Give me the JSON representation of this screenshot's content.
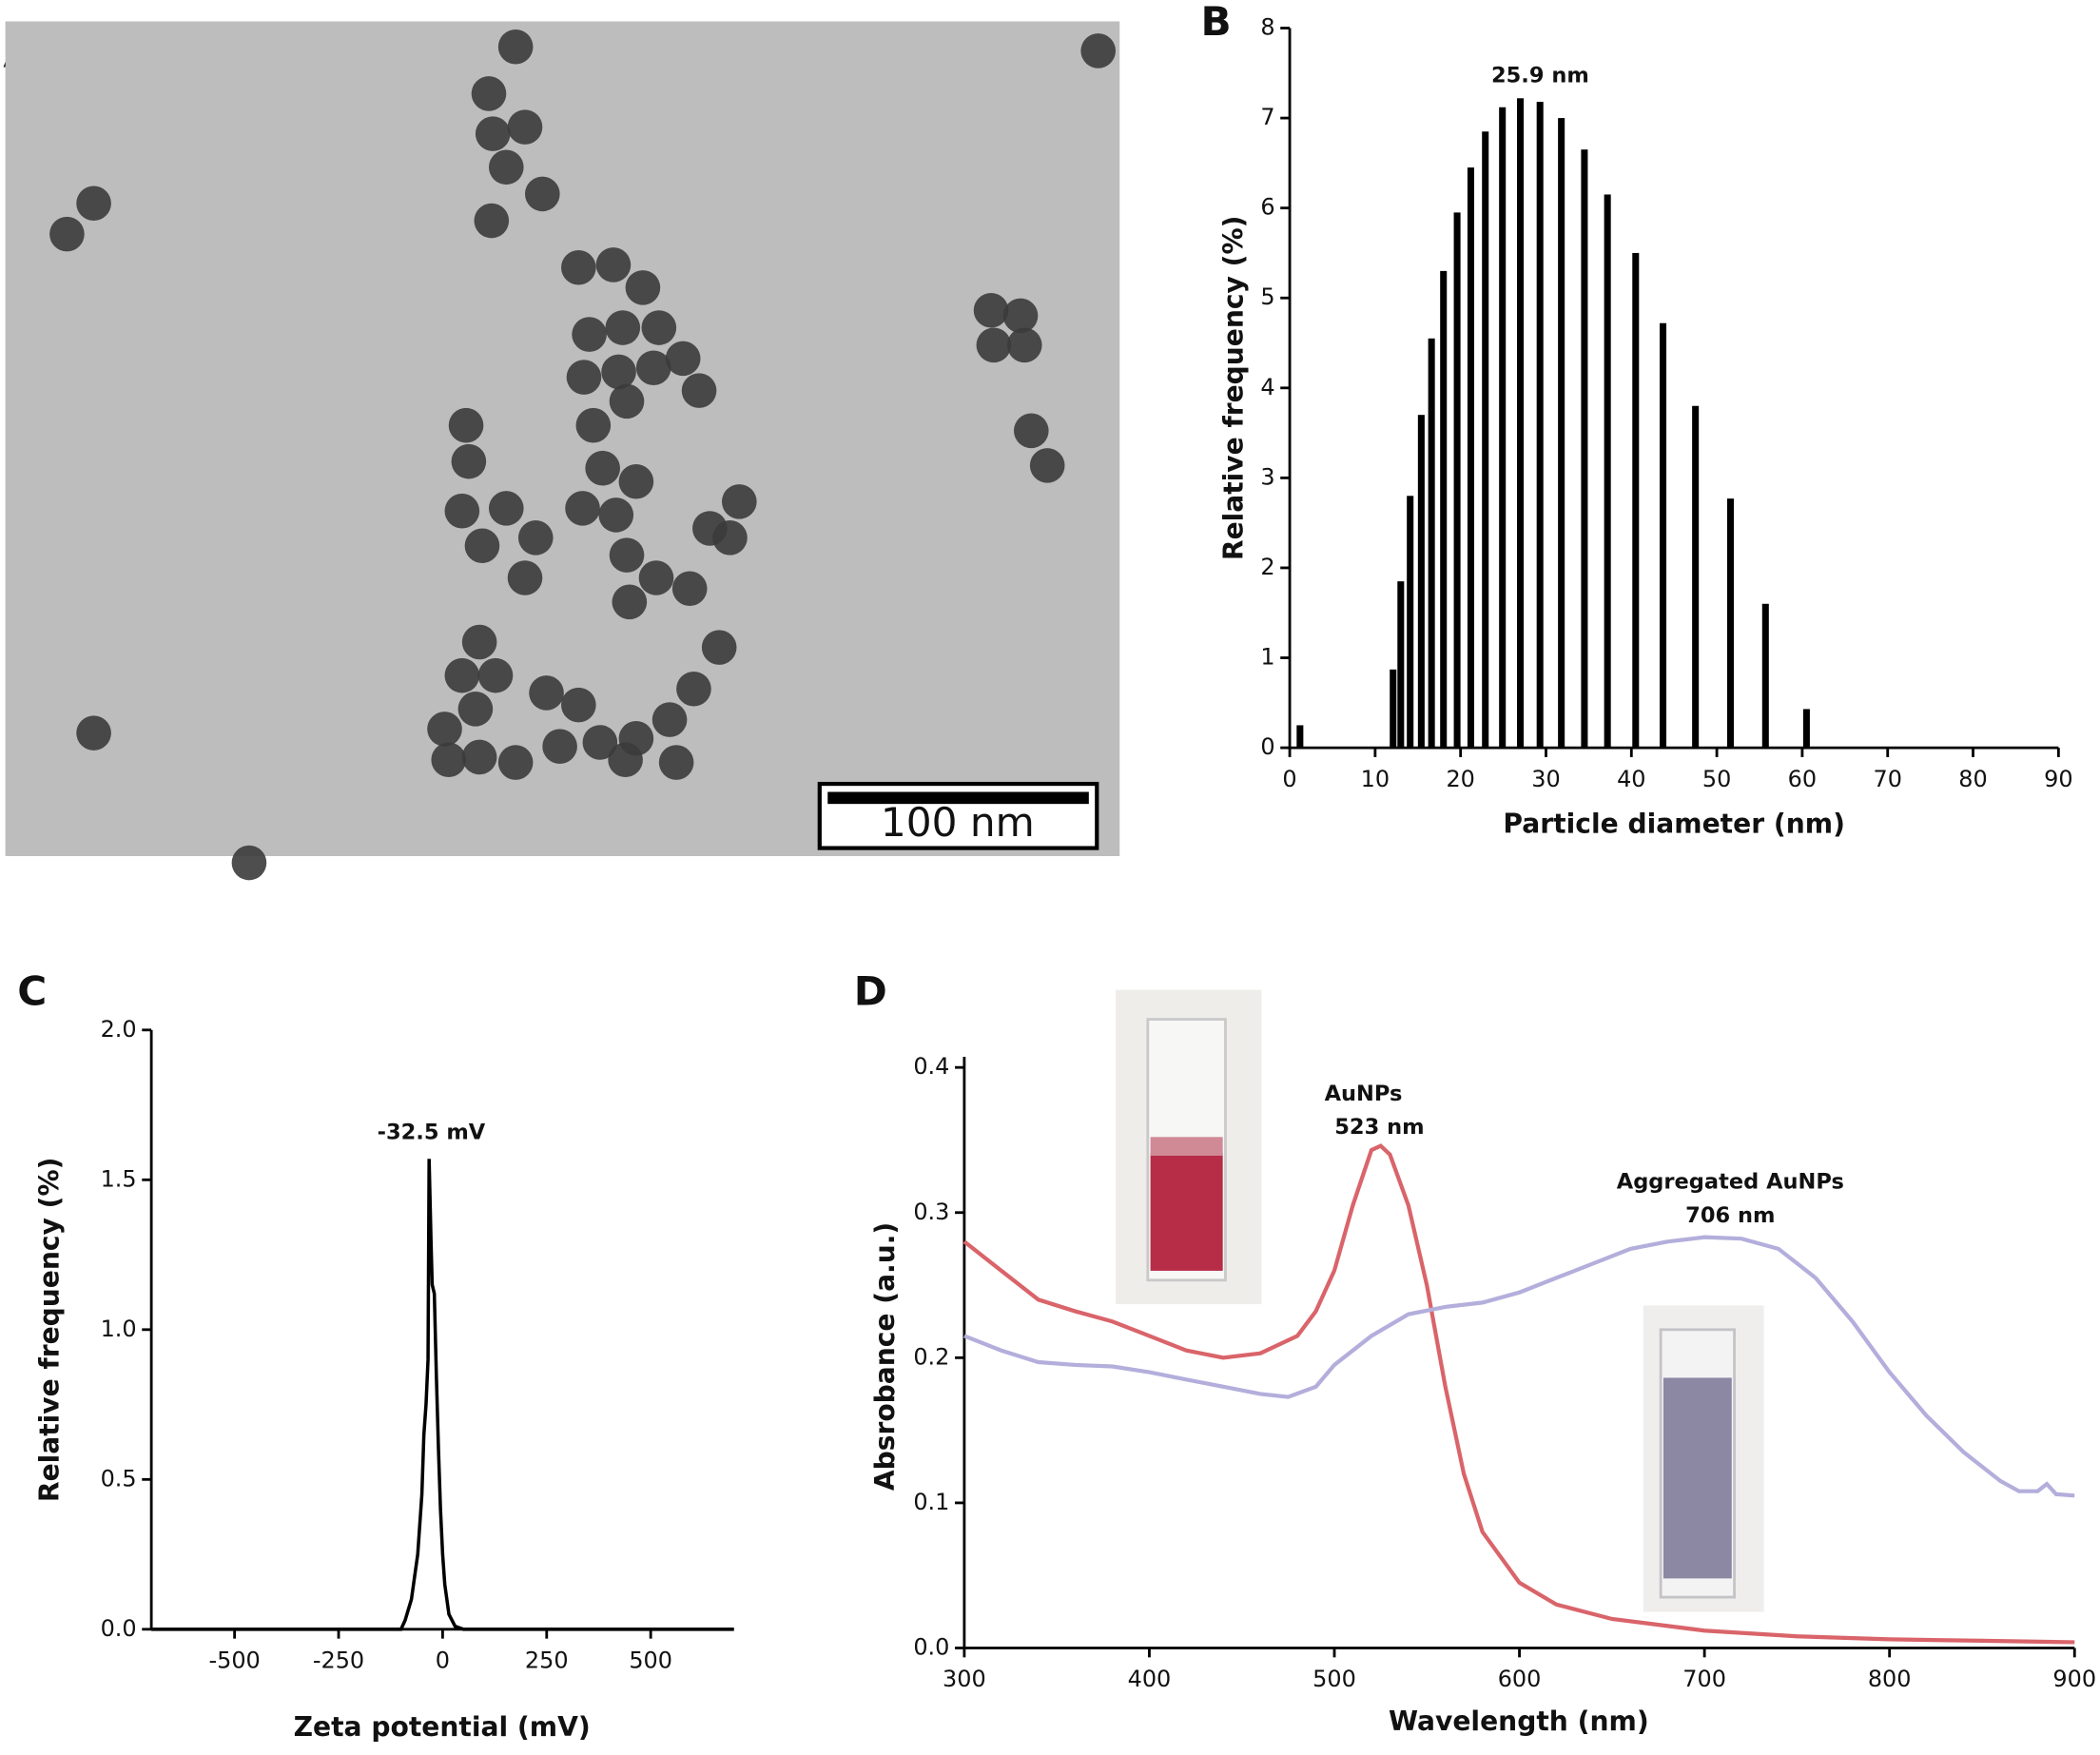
{
  "chart_data": [
    {
      "type": "image",
      "panel": "A",
      "scale_bar": "100 nm"
    },
    {
      "type": "bar",
      "panel": "B",
      "xlabel": "Particle diameter (nm)",
      "ylabel": "Relative frequency (%)",
      "x": [
        1.2,
        12.1,
        13.0,
        14.1,
        15.4,
        16.6,
        18.0,
        19.6,
        21.2,
        22.9,
        24.9,
        27.0,
        29.3,
        31.8,
        34.5,
        37.2,
        40.5,
        43.7,
        47.5,
        51.6,
        55.7,
        60.5
      ],
      "values": [
        0.25,
        0.87,
        1.85,
        2.8,
        3.7,
        4.55,
        5.3,
        5.95,
        6.45,
        6.85,
        7.12,
        7.22,
        7.18,
        7.0,
        6.65,
        6.15,
        5.5,
        4.72,
        3.8,
        2.77,
        1.6,
        0.43
      ],
      "color": "#000000",
      "xlim": [
        0,
        90
      ],
      "xticks": [
        0,
        10,
        20,
        30,
        40,
        50,
        60,
        70,
        80,
        90
      ],
      "ylim": [
        0,
        8
      ],
      "yticks": [
        0,
        1,
        2,
        3,
        4,
        5,
        6,
        7,
        8
      ],
      "annotations": [
        "25.9 nm"
      ]
    },
    {
      "type": "line",
      "panel": "C",
      "xlabel": "Zeta potential (mV)",
      "ylabel": "Relative frequency (%)",
      "x": [
        -700,
        -100,
        -90,
        -75,
        -60,
        -50,
        -45,
        -40,
        -35,
        -32.5,
        -28,
        -25,
        -20,
        -15,
        -10,
        -5,
        0,
        5,
        15,
        30,
        50,
        700
      ],
      "values": [
        0,
        0,
        0.03,
        0.1,
        0.25,
        0.45,
        0.65,
        0.75,
        0.9,
        1.57,
        1.3,
        1.15,
        1.12,
        0.85,
        0.6,
        0.4,
        0.25,
        0.15,
        0.05,
        0.01,
        0,
        0
      ],
      "color": "#000000",
      "xlim": [
        -700,
        700
      ],
      "xticks": [
        -500,
        -250,
        0,
        250,
        500
      ],
      "ylim": [
        0,
        2
      ],
      "yticks": [
        {
          "value": 0,
          "label": "0.0"
        },
        0.5,
        {
          "value": 1,
          "label": "1.0"
        },
        1.5,
        {
          "value": 2,
          "label": "2.0"
        }
      ],
      "annotations": [
        "-32.5 mV"
      ]
    },
    {
      "type": "line",
      "panel": "D",
      "xlabel": "Wavelength (nm)",
      "ylabel": "Absrobance (a.u.)",
      "series": [
        {
          "name": "AuNPs",
          "color": "#d9646a",
          "x": [
            300,
            320,
            340,
            360,
            380,
            400,
            420,
            440,
            460,
            480,
            490,
            500,
            510,
            520,
            525,
            530,
            540,
            550,
            560,
            570,
            580,
            600,
            620,
            650,
            700,
            750,
            800,
            850,
            900
          ],
          "values": [
            0.28,
            0.26,
            0.24,
            0.232,
            0.225,
            0.215,
            0.205,
            0.2,
            0.203,
            0.215,
            0.232,
            0.26,
            0.305,
            0.343,
            0.346,
            0.34,
            0.305,
            0.25,
            0.18,
            0.12,
            0.08,
            0.045,
            0.03,
            0.02,
            0.012,
            0.008,
            0.006,
            0.005,
            0.004
          ]
        },
        {
          "name": "Aggregated AuNPs",
          "color": "#b3aedb",
          "x": [
            300,
            320,
            340,
            360,
            380,
            400,
            420,
            440,
            460,
            475,
            490,
            500,
            520,
            540,
            560,
            580,
            600,
            620,
            640,
            660,
            680,
            700,
            720,
            740,
            760,
            780,
            800,
            820,
            840,
            860,
            870,
            880,
            885,
            890,
            900
          ],
          "values": [
            0.215,
            0.205,
            0.197,
            0.195,
            0.194,
            0.19,
            0.185,
            0.18,
            0.175,
            0.173,
            0.18,
            0.195,
            0.215,
            0.23,
            0.235,
            0.238,
            0.245,
            0.255,
            0.265,
            0.275,
            0.28,
            0.283,
            0.282,
            0.275,
            0.255,
            0.225,
            0.19,
            0.16,
            0.135,
            0.115,
            0.108,
            0.108,
            0.113,
            0.106,
            0.105
          ]
        }
      ],
      "xlim": [
        300,
        900
      ],
      "xticks": [
        300,
        400,
        500,
        600,
        700,
        800,
        900
      ],
      "ylim": [
        0,
        0.4
      ],
      "yticks": [
        {
          "value": 0,
          "label": "0.0"
        },
        0.1,
        0.2,
        0.3,
        0.4
      ],
      "annotations": [
        "523 nm",
        "706 nm"
      ]
    }
  ]
}
